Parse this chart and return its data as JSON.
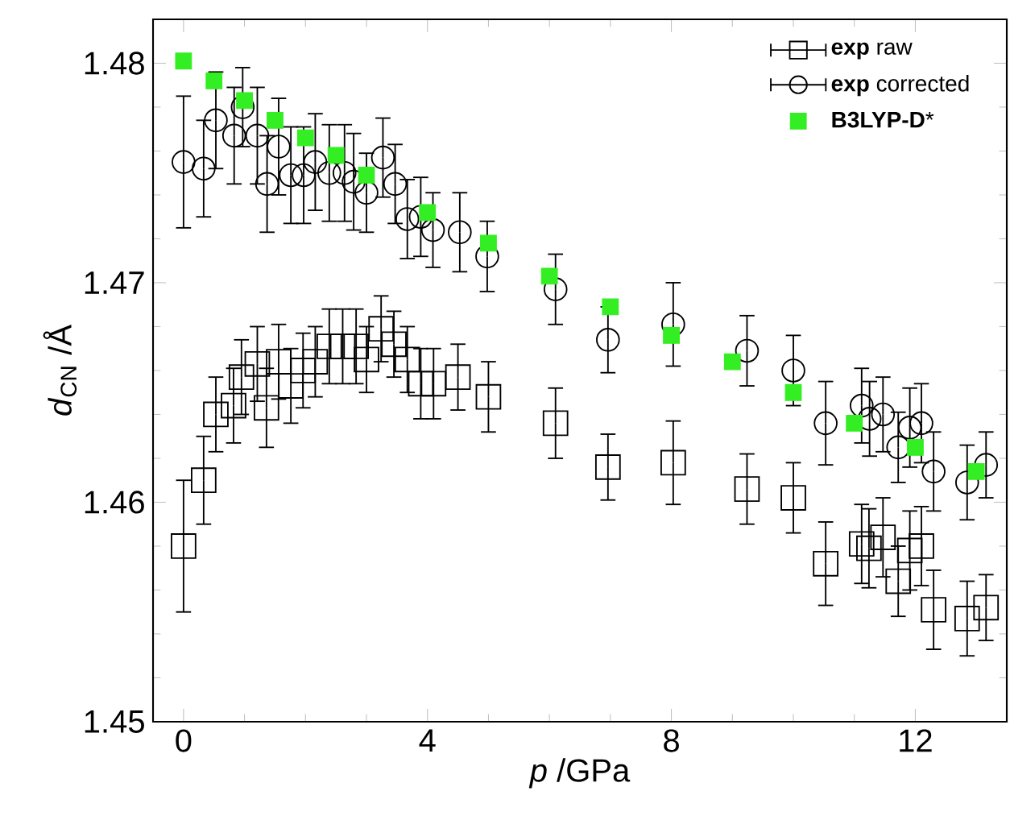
{
  "chart_data": {
    "type": "scatter",
    "xlabel": "*p* /GPa",
    "ylabel": "*d*$_{CN}$ /Å",
    "xlim": [
      -0.5,
      13.5
    ],
    "ylim": [
      1.45,
      1.482
    ],
    "xticks": [
      0,
      4,
      8,
      12
    ],
    "yticks": [
      1.45,
      1.46,
      1.47,
      1.48
    ],
    "legend": "top right",
    "series": [
      {
        "name": "**exp** raw",
        "color": "#000000",
        "marker": "square",
        "x": [
          0,
          0.33,
          0.53,
          0.82,
          0.95,
          1.21,
          1.36,
          1.56,
          1.76,
          1.96,
          2.16,
          2.39,
          2.61,
          2.83,
          3.0,
          3.24,
          3.45,
          3.67,
          3.89,
          4.1,
          4.5,
          5.0,
          6.1,
          6.96,
          8.03,
          9.24,
          10.0,
          10.53,
          11.12,
          11.24,
          11.47,
          11.72,
          11.91,
          12.1,
          12.3,
          12.85,
          13.16
        ],
        "values": [
          1.458,
          1.461,
          1.464,
          1.4644,
          1.4657,
          1.4663,
          1.4643,
          1.4664,
          1.4653,
          1.466,
          1.4664,
          1.4671,
          1.4671,
          1.4671,
          1.4665,
          1.4679,
          1.4672,
          1.4665,
          1.4654,
          1.4654,
          1.4657,
          1.4648,
          1.4636,
          1.4616,
          1.4618,
          1.4606,
          1.4602,
          1.4572,
          1.4581,
          1.4579,
          1.4584,
          1.4564,
          1.4578,
          1.458,
          1.4551,
          1.4547,
          1.4552
        ],
        "errors": [
          0.003,
          0.002,
          0.0017,
          0.0017,
          0.0017,
          0.0017,
          0.0018,
          0.0017,
          0.0017,
          0.0017,
          0.0016,
          0.0017,
          0.0017,
          0.0017,
          0.0015,
          0.0015,
          0.0015,
          0.0015,
          0.0016,
          0.0016,
          0.0015,
          0.0016,
          0.0016,
          0.0015,
          0.0019,
          0.0016,
          0.0016,
          0.0019,
          0.0018,
          0.0018,
          0.0018,
          0.0016,
          0.0018,
          0.0018,
          0.0018,
          0.0017,
          0.0015
        ]
      },
      {
        "name": "**exp** corrected",
        "color": "#000000",
        "marker": "circle",
        "x": [
          0,
          0.33,
          0.53,
          0.83,
          0.97,
          1.21,
          1.37,
          1.56,
          1.76,
          1.97,
          2.16,
          2.39,
          2.64,
          2.79,
          3.0,
          3.27,
          3.47,
          3.67,
          3.89,
          4.09,
          4.53,
          4.98,
          6.1,
          6.96,
          8.03,
          9.24,
          10.0,
          10.53,
          11.12,
          11.25,
          11.47,
          11.72,
          11.91,
          12.1,
          12.3,
          12.85,
          13.16
        ],
        "values": [
          1.4755,
          1.4752,
          1.4774,
          1.4767,
          1.478,
          1.4767,
          1.4745,
          1.4762,
          1.4749,
          1.4749,
          1.4755,
          1.475,
          1.475,
          1.4746,
          1.4741,
          1.4757,
          1.4745,
          1.4729,
          1.473,
          1.4724,
          1.4723,
          1.4712,
          1.4697,
          1.4674,
          1.4681,
          1.4669,
          1.466,
          1.4636,
          1.4644,
          1.4638,
          1.464,
          1.4625,
          1.4634,
          1.4636,
          1.4614,
          1.4609,
          1.4617
        ],
        "errors": [
          0.003,
          0.0022,
          0.0022,
          0.0022,
          0.0018,
          0.0022,
          0.0022,
          0.0022,
          0.0022,
          0.0022,
          0.0022,
          0.0022,
          0.0022,
          0.0022,
          0.0018,
          0.0018,
          0.0018,
          0.0018,
          0.0018,
          0.0017,
          0.0018,
          0.0016,
          0.0016,
          0.0015,
          0.0019,
          0.0016,
          0.0016,
          0.0019,
          0.0017,
          0.0017,
          0.0017,
          0.0016,
          0.0018,
          0.0018,
          0.0018,
          0.0017,
          0.0015
        ]
      },
      {
        "name": "**B3LYP-D***",
        "color": "#33ee22",
        "marker": "square",
        "x": [
          0,
          0.5,
          1,
          1.5,
          2,
          2.5,
          3,
          4,
          5,
          6,
          7,
          8,
          9,
          10,
          11,
          12,
          13
        ],
        "values": [
          1.4801,
          1.4792,
          1.4783,
          1.4774,
          1.4766,
          1.4758,
          1.4749,
          1.4732,
          1.4718,
          1.4703,
          1.4689,
          1.4676,
          1.4664,
          1.465,
          1.4636,
          1.4625,
          1.4614
        ]
      }
    ]
  }
}
